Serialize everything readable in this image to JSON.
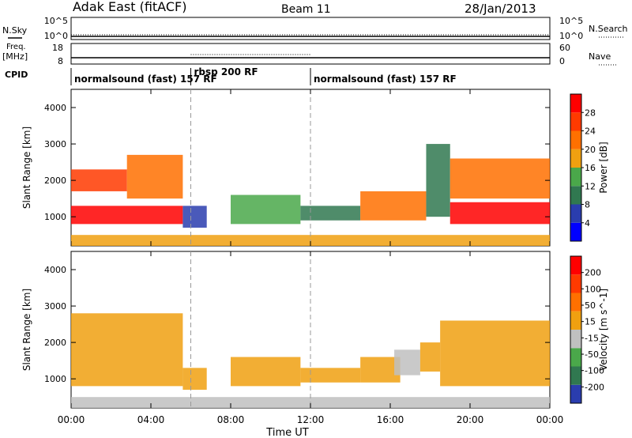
{
  "header": {
    "site": "Adak East (fitACF)",
    "beam": "Beam 11",
    "date": "28/Jan/2013"
  },
  "left_labels": {
    "nsky": "N.Sky",
    "freq_line1": "Freq.",
    "freq_line2": "[MHz]",
    "cpid": "CPID"
  },
  "right_labels": {
    "nsearch": "N.Search",
    "nave": "Nave"
  },
  "noise_panel": {
    "left_ticks": [
      "10^5",
      "10^0"
    ],
    "right_ticks": [
      "10^5",
      "10^0"
    ]
  },
  "freq_panel": {
    "left_ticks": [
      "18",
      "8"
    ],
    "right_ticks": [
      "60",
      "0"
    ]
  },
  "cpid_segments": [
    {
      "label": "normalsound (fast) 157 RF",
      "start": 0.0,
      "end": 6.0
    },
    {
      "label": "rbsp 200 RF",
      "start": 6.0,
      "end": 12.0
    },
    {
      "label": "normalsound (fast) 157 RF",
      "start": 12.0,
      "end": 24.0
    }
  ],
  "time_axis": {
    "label": "Time UT",
    "ticks": [
      "00:00",
      "04:00",
      "08:00",
      "12:00",
      "16:00",
      "20:00",
      "00:00"
    ],
    "tick_hours": [
      0,
      4,
      8,
      12,
      16,
      20,
      24
    ]
  },
  "colors": {
    "power_scale": [
      "#0000ff",
      "#2a3dae",
      "#307850",
      "#4aa84a",
      "#f0a010",
      "#ff7000",
      "#ff3a00",
      "#ff0000"
    ],
    "velocity_scale": [
      "#2a3dae",
      "#307850",
      "#4aa84a",
      "#c0c0c0",
      "#f0a010",
      "#ff7000",
      "#ff3a00",
      "#ff0000"
    ]
  },
  "chart_data": [
    {
      "type": "heatmap",
      "title": "",
      "xlabel": "",
      "ylabel": "Slant Range [km]",
      "xlim": [
        0,
        24
      ],
      "ylim": [
        200,
        4500
      ],
      "y_ticks": [
        "1000",
        "2000",
        "3000",
        "4000"
      ],
      "y_tick_values": [
        1000,
        2000,
        3000,
        4000
      ],
      "colorbar": {
        "label": "Power [dB]",
        "ticks": [
          "4",
          "8",
          "12",
          "16",
          "20",
          "24",
          "28"
        ],
        "range": [
          0,
          32
        ]
      },
      "regions": [
        {
          "t0": 0.0,
          "t1": 5.6,
          "r0": 800,
          "r1": 1300,
          "value": 30
        },
        {
          "t0": 0.0,
          "t1": 2.8,
          "r0": 1700,
          "r1": 2300,
          "value": 26
        },
        {
          "t0": 2.8,
          "t1": 5.6,
          "r0": 1500,
          "r1": 2700,
          "value": 22
        },
        {
          "t0": 5.6,
          "t1": 6.8,
          "r0": 700,
          "r1": 1300,
          "value": 6
        },
        {
          "t0": 8.0,
          "t1": 11.5,
          "r0": 800,
          "r1": 1600,
          "value": 14
        },
        {
          "t0": 11.5,
          "t1": 14.5,
          "r0": 900,
          "r1": 1300,
          "value": 8
        },
        {
          "t0": 14.5,
          "t1": 17.8,
          "r0": 900,
          "r1": 1700,
          "value": 20
        },
        {
          "t0": 17.8,
          "t1": 19.0,
          "r0": 1000,
          "r1": 3000,
          "value": 10
        },
        {
          "t0": 19.0,
          "t1": 24.0,
          "r0": 800,
          "r1": 1400,
          "value": 30
        },
        {
          "t0": 19.0,
          "t1": 24.0,
          "r0": 1500,
          "r1": 2600,
          "value": 20
        },
        {
          "t0": 0.0,
          "t1": 24.0,
          "r0": 200,
          "r1": 500,
          "value": 18
        }
      ]
    },
    {
      "type": "heatmap",
      "title": "",
      "xlabel": "Time UT",
      "ylabel": "Slant Range [km]",
      "xlim": [
        0,
        24
      ],
      "ylim": [
        200,
        4500
      ],
      "y_ticks": [
        "1000",
        "2000",
        "3000",
        "4000"
      ],
      "y_tick_values": [
        1000,
        2000,
        3000,
        4000
      ],
      "colorbar": {
        "label": "Velocity [m s^-1]",
        "ticks": [
          "200",
          "100",
          "50",
          "15",
          "-15",
          "-50",
          "-100",
          "-200"
        ],
        "range": [
          -250,
          250
        ]
      },
      "regions": [
        {
          "t0": 0.0,
          "t1": 5.6,
          "r0": 800,
          "r1": 2800,
          "value": 0
        },
        {
          "t0": 5.6,
          "t1": 6.8,
          "r0": 700,
          "r1": 1300,
          "value": 30
        },
        {
          "t0": 8.0,
          "t1": 11.5,
          "r0": 800,
          "r1": 1600,
          "value": 30
        },
        {
          "t0": 11.5,
          "t1": 14.5,
          "r0": 900,
          "r1": 1300,
          "value": 30
        },
        {
          "t0": 14.5,
          "t1": 16.5,
          "r0": 900,
          "r1": 1600,
          "value": 0
        },
        {
          "t0": 16.2,
          "t1": 17.5,
          "r0": 1100,
          "r1": 1800,
          "value": -40
        },
        {
          "t0": 17.5,
          "t1": 18.5,
          "r0": 1200,
          "r1": 2000,
          "value": 30
        },
        {
          "t0": 18.5,
          "t1": 24.0,
          "r0": 800,
          "r1": 2600,
          "value": 0
        },
        {
          "t0": 0.0,
          "t1": 24.0,
          "r0": 200,
          "r1": 500,
          "value": -40
        }
      ]
    }
  ]
}
